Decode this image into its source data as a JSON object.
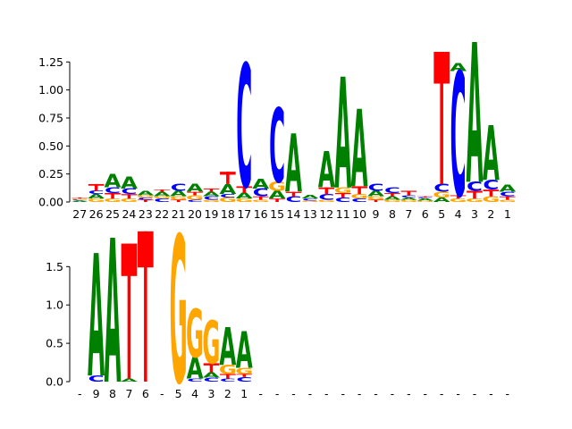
{
  "colors": {
    "A": "#008000",
    "C": "#0000ff",
    "G": "#ffa500",
    "T": "#ff0000"
  },
  "chart_data": [
    {
      "type": "sequence-logo",
      "title": "",
      "ylim": [
        0,
        1.42
      ],
      "yticks": [
        "0.00",
        "0.25",
        "0.50",
        "0.75",
        "1.00",
        "1.25"
      ],
      "ytick_values": [
        0,
        0.25,
        0.5,
        0.75,
        1.0,
        1.25
      ],
      "position_labels": [
        "27",
        "26",
        "25",
        "24",
        "23",
        "22",
        "21",
        "20",
        "19",
        "18",
        "17",
        "16",
        "15",
        "14",
        "13",
        "12",
        "11",
        "10",
        "9",
        "8",
        "7",
        "6",
        "5",
        "4",
        "3",
        "2",
        "1"
      ],
      "positions": [
        [
          [
            "A",
            0.01
          ],
          [
            "C",
            0.01
          ],
          [
            "G",
            0.01
          ],
          [
            "T",
            0.01
          ]
        ],
        [
          [
            "G",
            0.03
          ],
          [
            "A",
            0.04
          ],
          [
            "C",
            0.03
          ],
          [
            "T",
            0.06
          ]
        ],
        [
          [
            "G",
            0.03
          ],
          [
            "T",
            0.05
          ],
          [
            "C",
            0.05
          ],
          [
            "A",
            0.12
          ]
        ],
        [
          [
            "G",
            0.03
          ],
          [
            "T",
            0.04
          ],
          [
            "C",
            0.05
          ],
          [
            "A",
            0.11
          ]
        ],
        [
          [
            "T",
            0.02
          ],
          [
            "C",
            0.02
          ],
          [
            "G",
            0.02
          ],
          [
            "A",
            0.04
          ]
        ],
        [
          [
            "C",
            0.03
          ],
          [
            "G",
            0.02
          ],
          [
            "A",
            0.04
          ],
          [
            "T",
            0.02
          ]
        ],
        [
          [
            "T",
            0.02
          ],
          [
            "G",
            0.03
          ],
          [
            "A",
            0.05
          ],
          [
            "C",
            0.06
          ]
        ],
        [
          [
            "C",
            0.02
          ],
          [
            "G",
            0.04
          ],
          [
            "T",
            0.03
          ],
          [
            "A",
            0.07
          ]
        ],
        [
          [
            "G",
            0.02
          ],
          [
            "C",
            0.03
          ],
          [
            "A",
            0.04
          ],
          [
            "T",
            0.03
          ]
        ],
        [
          [
            "G",
            0.04
          ],
          [
            "C",
            0.03
          ],
          [
            "A",
            0.09
          ],
          [
            "T",
            0.11
          ]
        ],
        [
          [
            "G",
            0.03
          ],
          [
            "A",
            0.05
          ],
          [
            "T",
            0.06
          ],
          [
            "C",
            1.1
          ]
        ],
        [
          [
            "G",
            0.02
          ],
          [
            "T",
            0.03
          ],
          [
            "C",
            0.07
          ],
          [
            "A",
            0.09
          ]
        ],
        [
          [
            "T",
            0.03
          ],
          [
            "A",
            0.07
          ],
          [
            "G",
            0.08
          ],
          [
            "C",
            0.66
          ]
        ],
        [
          [
            "C",
            0.05
          ],
          [
            "T",
            0.04
          ],
          [
            "A",
            0.52
          ]
        ],
        [
          [
            "G",
            0.01
          ],
          [
            "C",
            0.02
          ],
          [
            "A",
            0.03
          ]
        ],
        [
          [
            "G",
            0.02
          ],
          [
            "C",
            0.05
          ],
          [
            "T",
            0.06
          ],
          [
            "A",
            0.32
          ]
        ],
        [
          [
            "C",
            0.04
          ],
          [
            "T",
            0.04
          ],
          [
            "G",
            0.05
          ],
          [
            "A",
            0.99
          ]
        ],
        [
          [
            "C",
            0.03
          ],
          [
            "G",
            0.04
          ],
          [
            "T",
            0.07
          ],
          [
            "A",
            0.69
          ]
        ],
        [
          [
            "T",
            0.02
          ],
          [
            "G",
            0.03
          ],
          [
            "A",
            0.05
          ],
          [
            "C",
            0.06
          ]
        ],
        [
          [
            "G",
            0.02
          ],
          [
            "A",
            0.03
          ],
          [
            "T",
            0.03
          ],
          [
            "C",
            0.05
          ]
        ],
        [
          [
            "G",
            0.02
          ],
          [
            "A",
            0.02
          ],
          [
            "C",
            0.02
          ],
          [
            "T",
            0.04
          ]
        ],
        [
          [
            "G",
            0.01
          ],
          [
            "A",
            0.02
          ],
          [
            "C",
            0.01
          ],
          [
            "T",
            0.01
          ]
        ],
        [
          [
            "A",
            0.04
          ],
          [
            "G",
            0.05
          ],
          [
            "C",
            0.07
          ],
          [
            "T",
            1.18
          ]
        ],
        [
          [
            "G",
            0.03
          ],
          [
            "T",
            0.03
          ],
          [
            "C",
            1.11
          ],
          [
            "A",
            0.07
          ]
        ],
        [
          [
            "G",
            0.03
          ],
          [
            "T",
            0.07
          ],
          [
            "C",
            0.08
          ],
          [
            "A",
            1.25
          ]
        ],
        [
          [
            "G",
            0.05
          ],
          [
            "T",
            0.06
          ],
          [
            "C",
            0.09
          ],
          [
            "A",
            0.49
          ]
        ],
        [
          [
            "G",
            0.02
          ],
          [
            "T",
            0.03
          ],
          [
            "C",
            0.04
          ],
          [
            "A",
            0.06
          ]
        ]
      ]
    },
    {
      "type": "sequence-logo",
      "title": "",
      "ylim": [
        0,
        1.97
      ],
      "yticks": [
        "0.0",
        "0.5",
        "1.0",
        "1.5"
      ],
      "ytick_values": [
        0,
        0.5,
        1.0,
        1.5
      ],
      "position_labels": [
        "-",
        "9",
        "8",
        "7",
        "6",
        "-",
        "5",
        "4",
        "3",
        "2",
        "1",
        "-",
        "-",
        "-",
        "-",
        "-",
        "-",
        "-",
        "-",
        "-",
        "-",
        "-",
        "-",
        "-",
        "-",
        "-",
        "-"
      ],
      "positions": [
        [],
        [
          [
            "C",
            0.08
          ],
          [
            "A",
            1.6
          ]
        ],
        [
          [
            "A",
            1.88
          ]
        ],
        [
          [
            "A",
            0.04
          ],
          [
            "T",
            1.76
          ]
        ],
        [
          [
            "T",
            1.96
          ]
        ],
        [],
        [
          [
            "G",
            1.92
          ]
        ],
        [
          [
            "C",
            0.04
          ],
          [
            "A",
            0.28
          ],
          [
            "G",
            0.63
          ]
        ],
        [
          [
            "C",
            0.05
          ],
          [
            "A",
            0.07
          ],
          [
            "T",
            0.12
          ],
          [
            "G",
            0.56
          ]
        ],
        [
          [
            "C",
            0.04
          ],
          [
            "T",
            0.06
          ],
          [
            "G",
            0.12
          ],
          [
            "A",
            0.49
          ]
        ],
        [
          [
            "C",
            0.06
          ],
          [
            "T",
            0.04
          ],
          [
            "G",
            0.08
          ],
          [
            "A",
            0.48
          ]
        ],
        [],
        [],
        [],
        [],
        [],
        [],
        [],
        [],
        [],
        [],
        [],
        [],
        [],
        [],
        [],
        []
      ]
    }
  ]
}
